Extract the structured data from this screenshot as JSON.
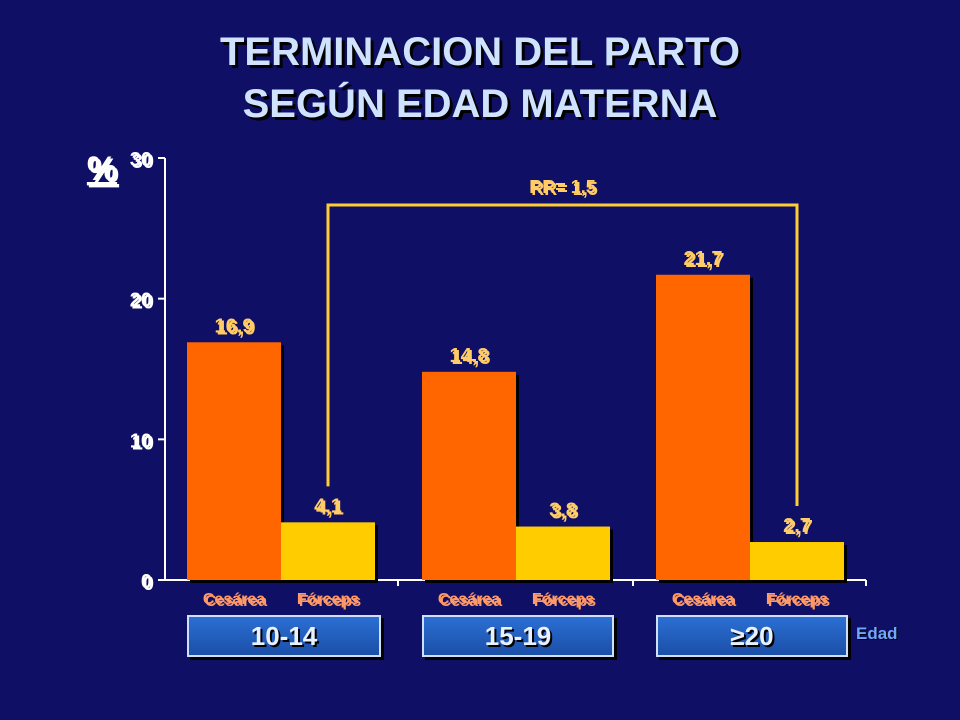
{
  "title_line1": "TERMINACION DEL PARTO",
  "title_line2": "SEGÚN EDAD MATERNA",
  "chart_data": {
    "type": "bar",
    "ylabel": "%",
    "ylim": [
      0,
      30
    ],
    "yticks": [
      "0",
      "10",
      "20",
      "30"
    ],
    "xlabel": "Edad",
    "groups": [
      "10-14",
      "15-19",
      "≥20"
    ],
    "bar_labels": [
      "Cesárea",
      "Fórceps"
    ],
    "series": [
      {
        "name": "Cesárea",
        "values": [
          16.9,
          14.8,
          21.7
        ],
        "value_labels": [
          "16,9",
          "14,8",
          "21,7"
        ],
        "color": "#ff6600"
      },
      {
        "name": "Fórceps",
        "values": [
          4.1,
          3.8,
          2.7
        ],
        "value_labels": [
          "4,1",
          "3,8",
          "2,7"
        ],
        "color": "#ffcc00"
      }
    ],
    "annotation": "RR= 1,5",
    "colors": {
      "axis": "#ffffff",
      "value_labels": "#ffcc66",
      "category_labels": "#ff9966",
      "bracket": "#ffcc33"
    }
  }
}
